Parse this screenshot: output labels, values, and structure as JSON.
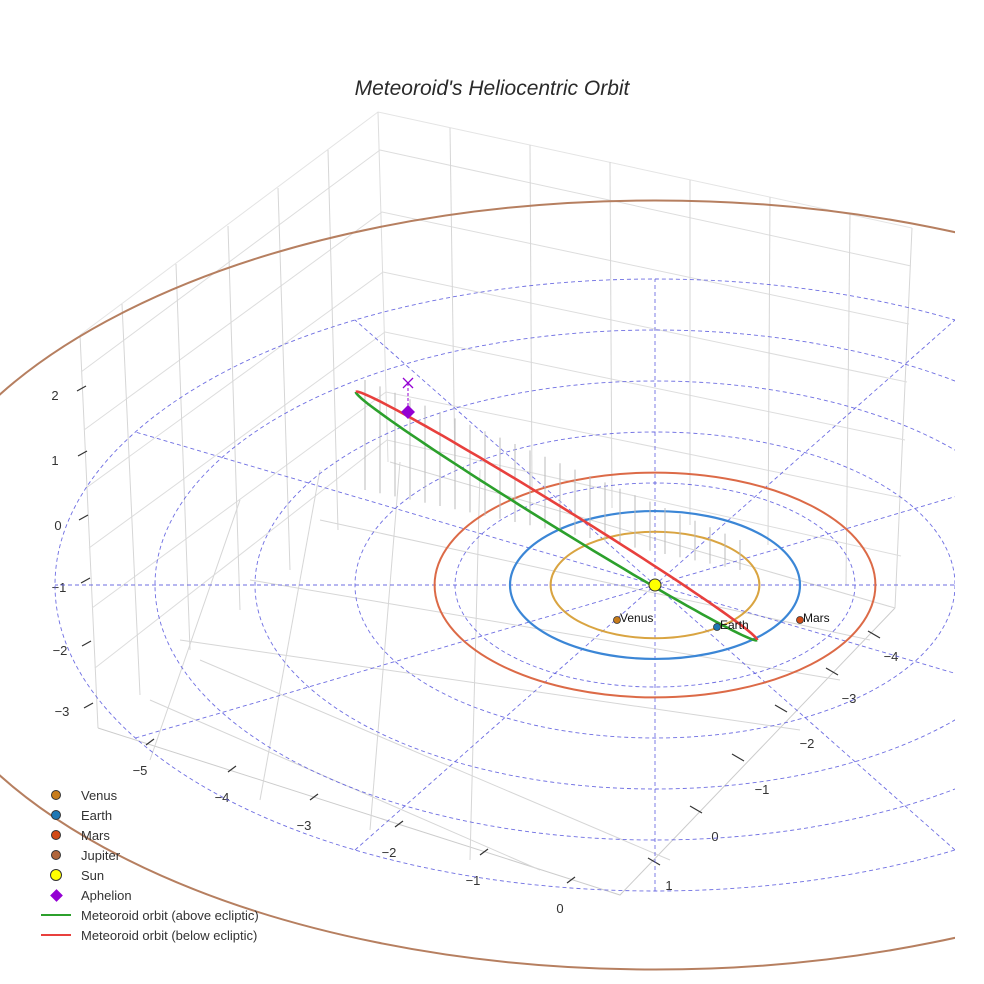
{
  "chart_data": {
    "type": "scatter3d",
    "title": "Meteoroid's Heliocentric Orbit",
    "axes": {
      "x_ticks": [
        -5,
        -4,
        -3,
        -2,
        -1,
        0
      ],
      "y_ticks": [
        1,
        0,
        -1,
        -2,
        -3,
        -4
      ],
      "z_ticks": [
        2,
        1,
        0,
        -1,
        -2,
        -3
      ],
      "grid": true
    },
    "planets": [
      {
        "name": "Venus",
        "orbit_radius_au": 0.72,
        "color": "#c77c1c",
        "orbit_color": "#d9a441",
        "point_label": "Venus"
      },
      {
        "name": "Earth",
        "orbit_radius_au": 1.0,
        "color": "#1f77b4",
        "orbit_color": "#3b86d6",
        "point_label": "Earth"
      },
      {
        "name": "Mars",
        "orbit_radius_au": 1.52,
        "color": "#d14a16",
        "orbit_color": "#dc6a47",
        "point_label": "Mars"
      },
      {
        "name": "Jupiter",
        "orbit_radius_au": 5.2,
        "color": "#b0663c",
        "orbit_color": "#b67f60",
        "point_label": ""
      }
    ],
    "sun": {
      "name": "Sun",
      "x": 0,
      "y": 0,
      "z": 0,
      "color": "#ffff00"
    },
    "aphelion": {
      "name": "Aphelion",
      "color": "#9400d3"
    },
    "meteoroid_orbit": {
      "above": {
        "name": "Meteoroid orbit (above ecliptic)",
        "color": "#2ca02c"
      },
      "below": {
        "name": "Meteoroid orbit (below ecliptic)",
        "color": "#e8403d"
      }
    },
    "ecliptic_grid_color": "#5555dd",
    "legend_placement": "bottom-left"
  },
  "legend": [
    {
      "label": "Venus",
      "kind": "dot",
      "color": "#c77c1c"
    },
    {
      "label": "Earth",
      "kind": "dot",
      "color": "#1f77b4"
    },
    {
      "label": "Mars",
      "kind": "dot",
      "color": "#d14a16"
    },
    {
      "label": "Jupiter",
      "kind": "dot",
      "color": "#b0663c"
    },
    {
      "label": "Sun",
      "kind": "sun",
      "color": "#ffff00"
    },
    {
      "label": "Aphelion",
      "kind": "diamond",
      "color": "#9400d3"
    },
    {
      "label": "Meteoroid orbit (above ecliptic)",
      "kind": "line",
      "color": "#2ca02c"
    },
    {
      "label": "Meteoroid orbit (below ecliptic)",
      "kind": "line",
      "color": "#e8403d"
    }
  ]
}
